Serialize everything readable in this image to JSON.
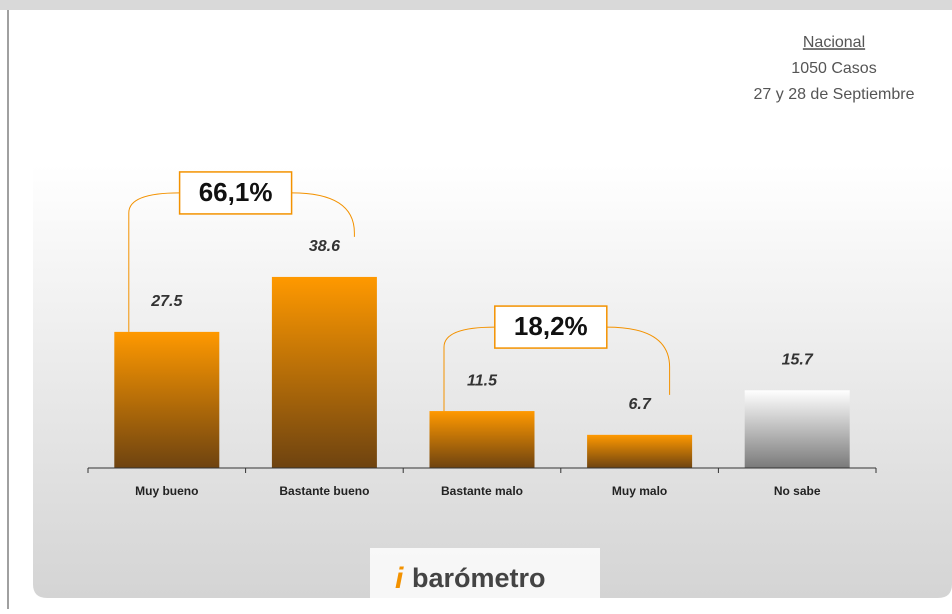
{
  "chart_data": {
    "type": "bar",
    "header": [
      "Nacional",
      "1050 Casos",
      "27 y 28 de Septiembre"
    ],
    "categories": [
      "Muy bueno",
      "Bastante bueno",
      "Bastante malo",
      "Muy malo",
      "No sabe"
    ],
    "values": [
      27.5,
      38.6,
      11.5,
      6.7,
      15.7
    ],
    "colors": [
      "#ff9900",
      "#ff9900",
      "#ff9900",
      "#ff9900",
      "#ffffff"
    ],
    "ylim": [
      0,
      60
    ],
    "annotations": [
      "66,1%",
      "18,2%"
    ],
    "logo": "barómetro"
  }
}
